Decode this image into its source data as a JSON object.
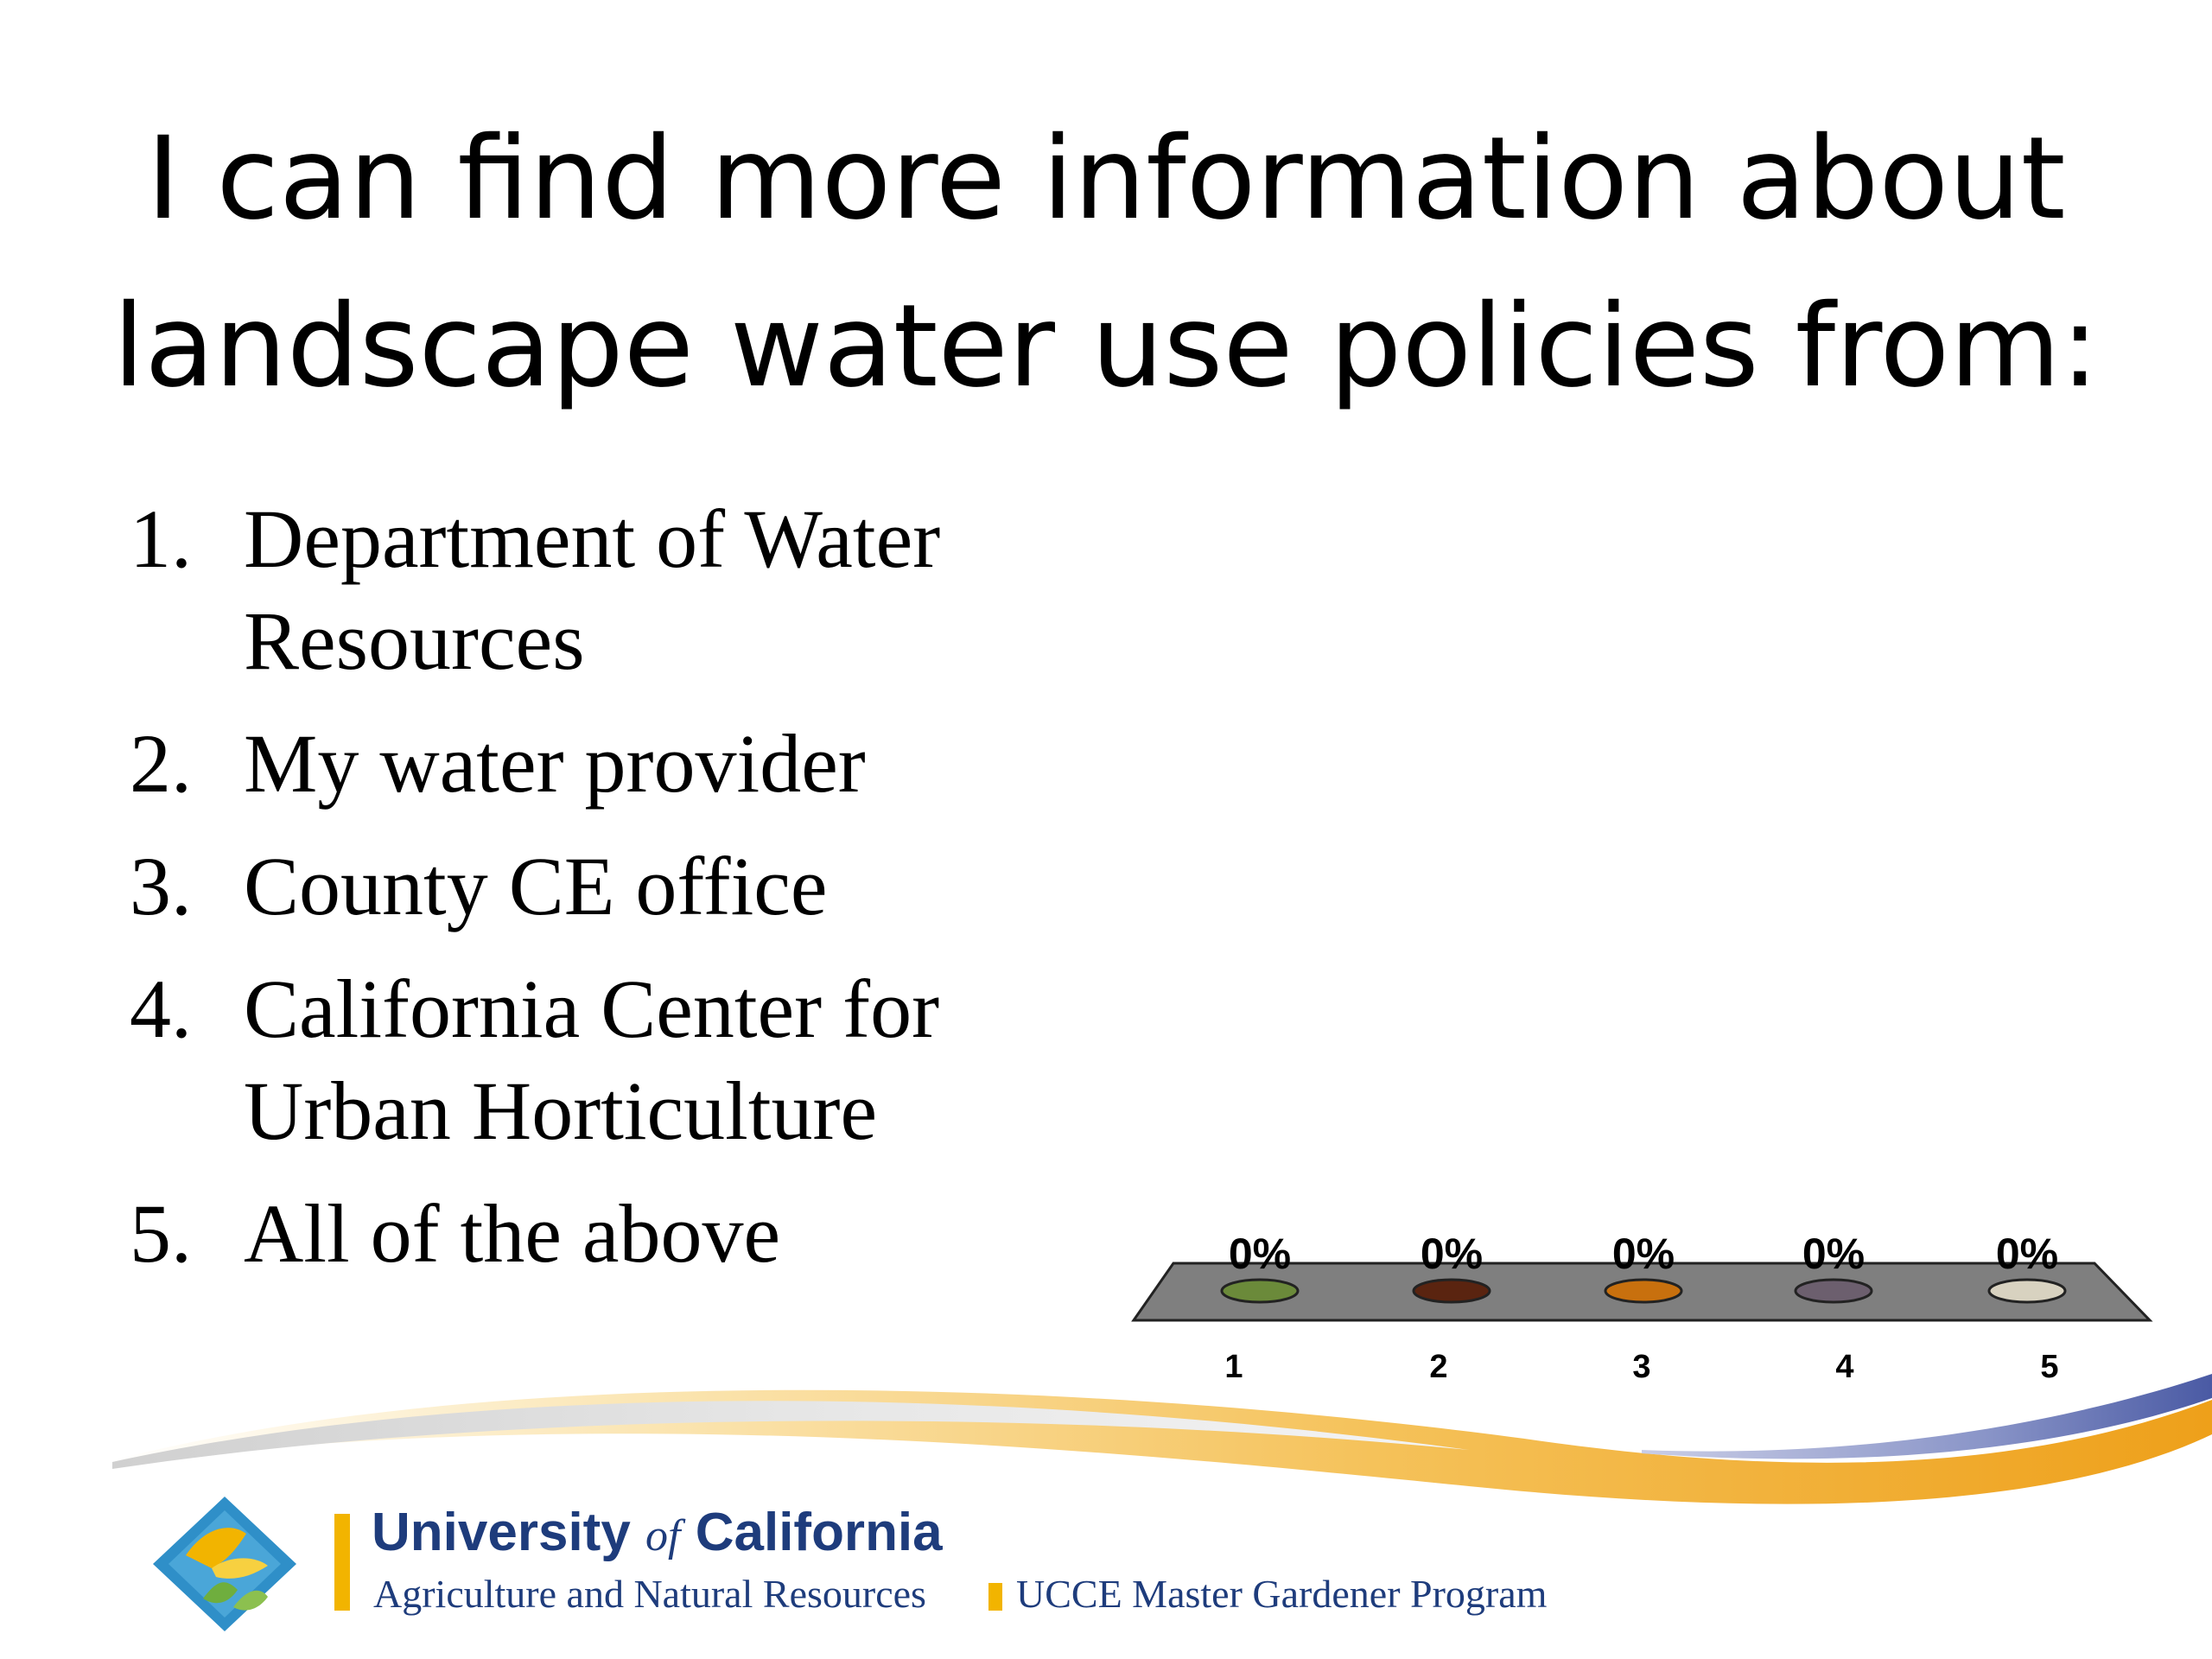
{
  "slide": {
    "title_lines": [
      "I can find more information about",
      "landscape water use policies from:"
    ],
    "options": [
      {
        "number": "1.",
        "lines": [
          "Department of Water",
          "Resources"
        ]
      },
      {
        "number": "2.",
        "lines": [
          "My water provider"
        ]
      },
      {
        "number": "3.",
        "lines": [
          "County CE office"
        ]
      },
      {
        "number": "4.",
        "lines": [
          "California Center for",
          "Urban Horticulture"
        ]
      },
      {
        "number": "5.",
        "lines": [
          "All of the above"
        ]
      }
    ]
  },
  "chart_data": {
    "type": "bar",
    "categories": [
      "1",
      "2",
      "3",
      "4",
      "5"
    ],
    "values": [
      0,
      0,
      0,
      0,
      0
    ],
    "data_labels": [
      "0%",
      "0%",
      "0%",
      "0%",
      "0%"
    ],
    "ylim": [
      0,
      100
    ],
    "colors": [
      "#6b8a3a",
      "#5a2410",
      "#c8700e",
      "#6c5f6e",
      "#d8d2c0"
    ],
    "floor_color": "#7f7f7f"
  },
  "footer": {
    "org_name_before": "University ",
    "org_name_of": "of",
    "org_name_after": " California",
    "org_subtitle": "Agriculture and Natural Resources",
    "program": "UCCE Master Gardener Program",
    "brand_blue": "#1e3c7c",
    "brand_gold": "#f2b400",
    "logo_icon": "uc-anr-diamond-logo-icon"
  }
}
